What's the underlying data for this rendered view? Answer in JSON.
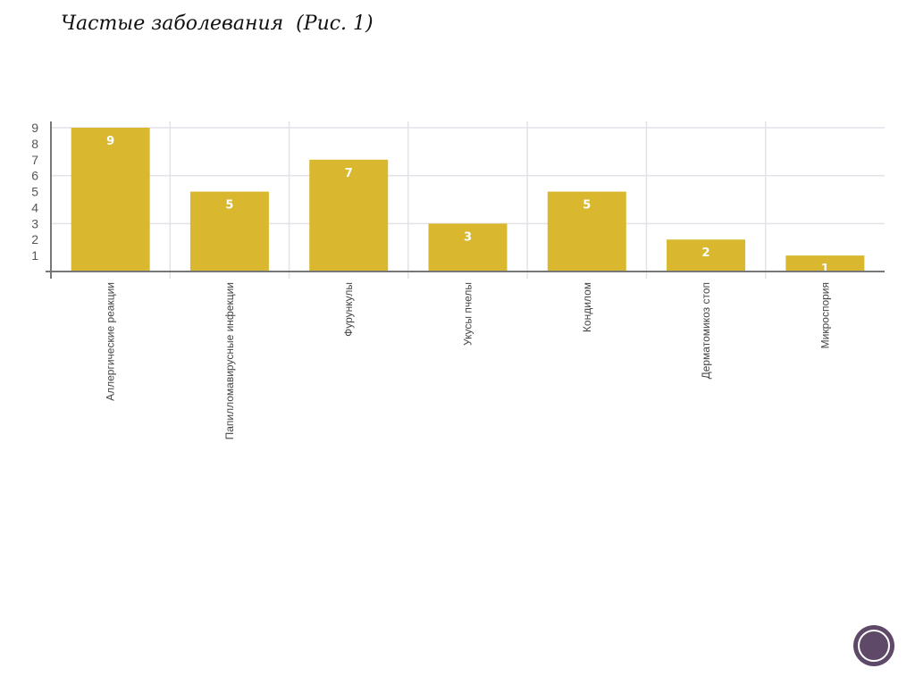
{
  "title": "Частые заболевания  (Рис. 1)",
  "colors": {
    "bar": "#d9b830",
    "grid": "#e2e2e8",
    "axis": "#777777",
    "label_in_bar": "#ffffff"
  },
  "chart_data": {
    "type": "bar",
    "title": "Частые заболевания  (Рис. 1)",
    "categories": [
      "Аллергические реакции",
      "Папилломавирусные инфекции",
      "Фурункулы",
      "Укусы пчелы",
      "Кондилом",
      "Дерматомикоз стоп",
      "Микроспория"
    ],
    "values": [
      9,
      5,
      7,
      3,
      5,
      2,
      1
    ],
    "data_labels": [
      "9",
      "5",
      "7",
      "3",
      "5",
      "2",
      "1"
    ],
    "yticks": [
      "1",
      "2",
      "3",
      "4",
      "5",
      "6",
      "7",
      "8",
      "9"
    ],
    "ylim": [
      0,
      9
    ],
    "xlabel": "",
    "ylabel": "",
    "grid": true
  }
}
